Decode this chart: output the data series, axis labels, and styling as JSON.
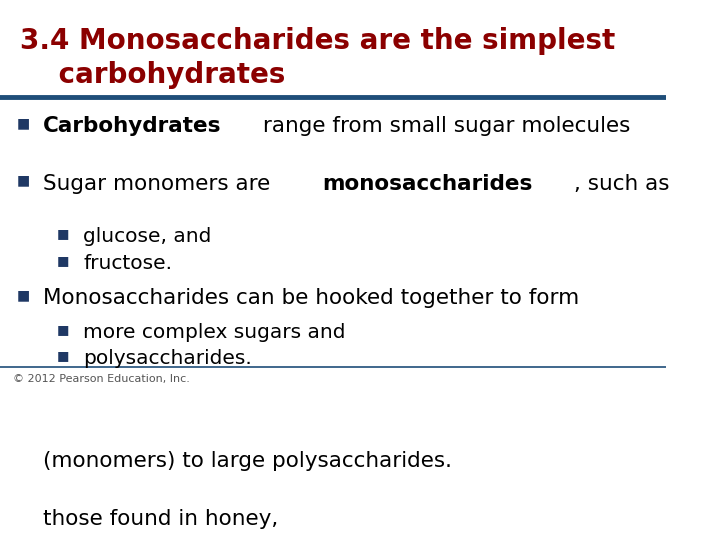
{
  "title_line1": "3.4 Monosaccharides are the simplest",
  "title_line2": "    carbohydrates",
  "title_color": "#8B0000",
  "title_fontsize": 20,
  "separator_color": "#1F4E79",
  "separator_thickness": 3.5,
  "background_color": "#FFFFFF",
  "bullet_color": "#1F3864",
  "bullet_char": "■",
  "body_fontsize": 15.5,
  "sub_fontsize": 14.5,
  "footer_text": "© 2012 Pearson Education, Inc.",
  "footer_fontsize": 8,
  "footer_color": "#555555",
  "items": [
    {
      "level": 1,
      "parts": [
        {
          "text": "Carbohydrates",
          "bold": true
        },
        {
          "text": " range from small sugar molecules\n(monomers) to large polysaccharides.",
          "bold": false
        }
      ]
    },
    {
      "level": 1,
      "parts": [
        {
          "text": "Sugar monomers are ",
          "bold": false
        },
        {
          "text": "monosaccharides",
          "bold": true
        },
        {
          "text": ", such as\nthose found in honey,",
          "bold": false
        }
      ]
    },
    {
      "level": 2,
      "parts": [
        {
          "text": "glucose, and",
          "bold": false
        }
      ]
    },
    {
      "level": 2,
      "parts": [
        {
          "text": "fructose.",
          "bold": false
        }
      ]
    },
    {
      "level": 1,
      "parts": [
        {
          "text": "Monosaccharides can be hooked together to form",
          "bold": false
        }
      ]
    },
    {
      "level": 2,
      "parts": [
        {
          "text": "more complex sugars and",
          "bold": false
        }
      ]
    },
    {
      "level": 2,
      "parts": [
        {
          "text": "polysaccharides.",
          "bold": false
        }
      ]
    }
  ]
}
